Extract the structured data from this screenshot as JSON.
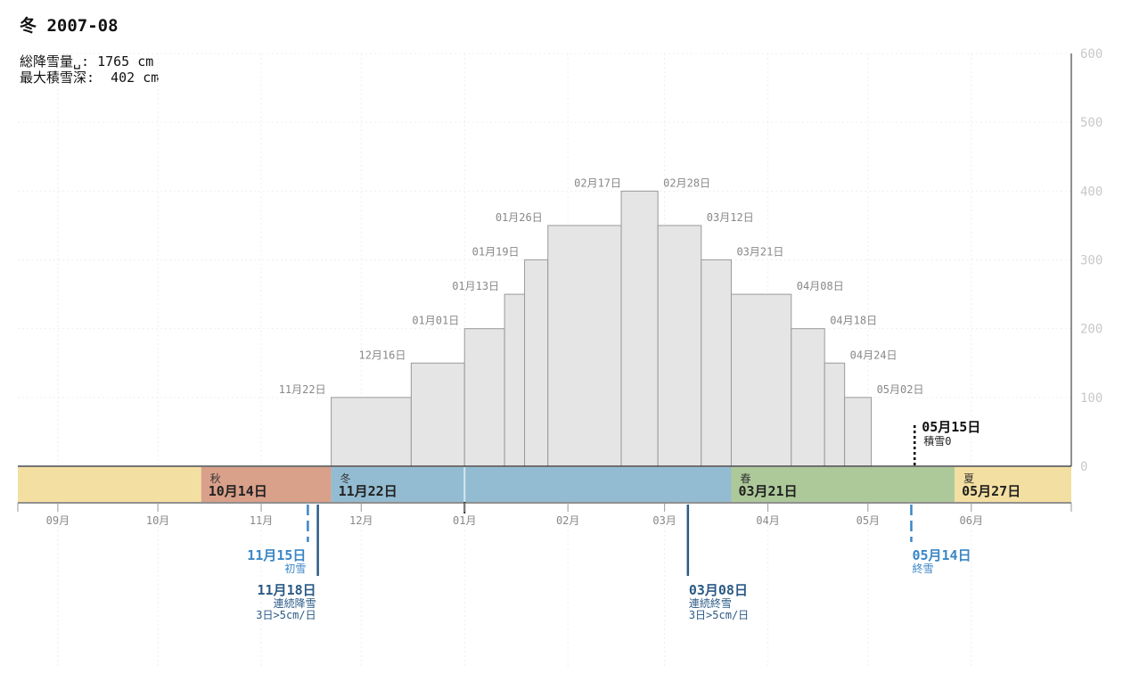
{
  "title": "冬 2007-08",
  "stats": {
    "total_snowfall": "総降雪量␣: 1765 cm",
    "max_depth": "最大積雪深:  402 cm"
  },
  "colors": {
    "bar_fill": "#e5e5e5",
    "bar_stroke": "#9a9a9a",
    "autumn": "#d9a08a",
    "winter": "#93bcd2",
    "spring": "#adc99a",
    "summer": "#f4dfa2",
    "event_blue": "#3a86c6",
    "event_dark": "#2b5a86"
  },
  "chart_data": {
    "type": "bar",
    "title": "冬 2007-08",
    "x_axis": {
      "range": [
        "2007-08-20",
        "2008-07-01"
      ],
      "ticks": [
        {
          "label": "09月",
          "date": "2007-09-01"
        },
        {
          "label": "10月",
          "date": "2007-10-01"
        },
        {
          "label": "11月",
          "date": "2007-11-01"
        },
        {
          "label": "12月",
          "date": "2007-12-01"
        },
        {
          "label": "01月",
          "date": "2008-01-01"
        },
        {
          "label": "02月",
          "date": "2008-02-01"
        },
        {
          "label": "03月",
          "date": "2008-03-01"
        },
        {
          "label": "04月",
          "date": "2008-04-01"
        },
        {
          "label": "05月",
          "date": "2008-05-01"
        },
        {
          "label": "06月",
          "date": "2008-06-01"
        }
      ]
    },
    "y_axis": {
      "ylim": [
        0,
        600
      ],
      "ticks": [
        0,
        100,
        200,
        300,
        400,
        500,
        600
      ],
      "position": "right",
      "grid": true
    },
    "bars": [
      {
        "label": "11月22日",
        "start": "2007-11-22",
        "end": "2007-12-16",
        "value": 100
      },
      {
        "label": "12月16日",
        "start": "2007-12-16",
        "end": "2008-01-01",
        "value": 150
      },
      {
        "label": "01月01日",
        "start": "2008-01-01",
        "end": "2008-01-13",
        "value": 200
      },
      {
        "label": "01月13日",
        "start": "2008-01-13",
        "end": "2008-01-19",
        "value": 250
      },
      {
        "label": "01月19日",
        "start": "2008-01-19",
        "end": "2008-01-26",
        "value": 300
      },
      {
        "label": "01月26日",
        "start": "2008-01-26",
        "end": "2008-02-17",
        "value": 350
      },
      {
        "label": "02月17日",
        "start": "2008-02-17",
        "end": "2008-02-28",
        "value": 400
      },
      {
        "label": "02月28日",
        "start": "2008-02-28",
        "end": "2008-03-12",
        "value": 350
      },
      {
        "label": "03月12日",
        "start": "2008-03-12",
        "end": "2008-03-21",
        "value": 300
      },
      {
        "label": "03月21日",
        "start": "2008-03-21",
        "end": "2008-04-08",
        "value": 250
      },
      {
        "label": "04月08日",
        "start": "2008-04-08",
        "end": "2008-04-18",
        "value": 200
      },
      {
        "label": "04月18日",
        "start": "2008-04-18",
        "end": "2008-04-24",
        "value": 150
      },
      {
        "label": "04月24日",
        "start": "2008-04-24",
        "end": "2008-05-02",
        "value": 100
      },
      {
        "label": "05月02日",
        "start": "2008-05-02",
        "end": "2008-05-10",
        "value": 0
      }
    ],
    "depth_zero": {
      "date": "2008-05-15",
      "label": "05月15日",
      "note": "積雪0"
    },
    "seasons": [
      {
        "key": "summer",
        "name": "",
        "date_label": "",
        "start": "2007-08-20",
        "end": "2007-10-14"
      },
      {
        "key": "autumn",
        "name": "秋",
        "date_label": "10月14日",
        "start": "2007-10-14",
        "end": "2007-11-22"
      },
      {
        "key": "winter",
        "name": "冬",
        "date_label": "11月22日",
        "start": "2007-11-22",
        "end": "2008-03-21"
      },
      {
        "key": "spring",
        "name": "春",
        "date_label": "03月21日",
        "start": "2008-03-21",
        "end": "2008-05-27"
      },
      {
        "key": "summer",
        "name": "夏",
        "date_label": "05月27日",
        "start": "2008-05-27",
        "end": "2008-07-01"
      }
    ],
    "year_boundary": "2008-01-01",
    "events": [
      {
        "date": "2007-11-15",
        "date_label": "11月15日",
        "lines": [
          "初雪"
        ],
        "style": "dashed",
        "tone": "event_blue",
        "level": 1
      },
      {
        "date": "2007-11-18",
        "date_label": "11月18日",
        "lines": [
          "連続降雪",
          "3日>5cm/日"
        ],
        "style": "solid",
        "tone": "event_dark",
        "level": 2
      },
      {
        "date": "2008-03-08",
        "date_label": "03月08日",
        "lines": [
          "連続終雪",
          "3日>5cm/日"
        ],
        "style": "solid",
        "tone": "event_dark",
        "level": 2
      },
      {
        "date": "2008-05-14",
        "date_label": "05月14日",
        "lines": [
          "終雪"
        ],
        "style": "dashed",
        "tone": "event_blue",
        "level": 1
      }
    ]
  }
}
